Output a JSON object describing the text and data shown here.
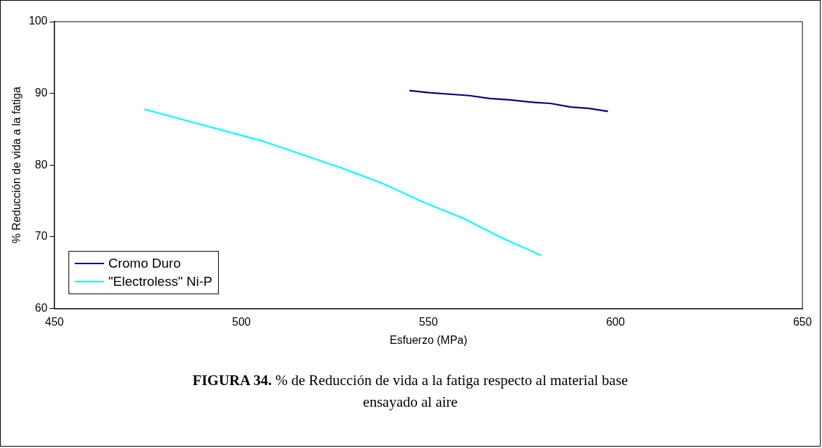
{
  "chart_data": {
    "type": "line",
    "xlabel": "Esfuerzo (MPa)",
    "ylabel": "% Reducción de vida a la fatiga",
    "annotations": [
      "FIGURA 34. % de Reducción de vida a la fatiga respecto al material base ensayado al aire"
    ],
    "xlim": [
      450,
      650
    ],
    "xticks": [
      450,
      500,
      550,
      600,
      650
    ],
    "ylim": [
      60,
      100
    ],
    "yticks": [
      60,
      70,
      80,
      90,
      100
    ],
    "grid": false,
    "legend": "bottom left",
    "marker": "none",
    "line_style": "solid",
    "series": [
      {
        "name": "Cromo Duro",
        "color": "#000080",
        "x": [
          544.9,
          550.3,
          560.9,
          566.3,
          571.8,
          576.9,
          582.7,
          588,
          593,
          598
        ],
        "values": [
          90.4,
          90.1,
          89.7,
          89.3,
          89.1,
          88.8,
          88.6,
          88.1,
          87.9,
          87.5
        ]
      },
      {
        "name": "\"Electroless\" Ni-P",
        "color": "#00ffff",
        "x": [
          474,
          506,
          527.4,
          538,
          548.4,
          559.3,
          569.5,
          580.2
        ],
        "values": [
          87.8,
          83.3,
          79.5,
          77.4,
          74.9,
          72.6,
          69.9,
          67.4
        ]
      }
    ]
  }
}
